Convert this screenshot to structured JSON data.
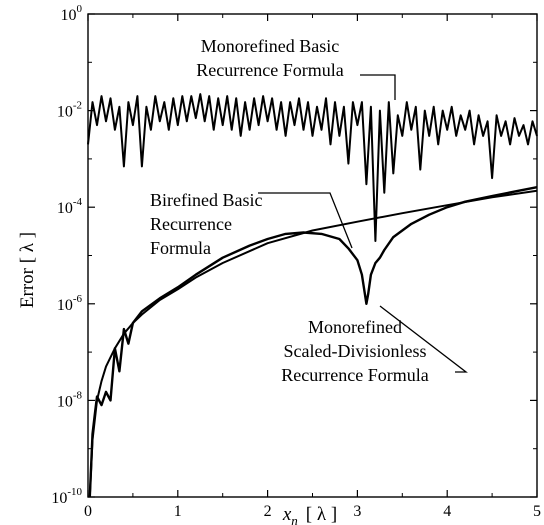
{
  "chart_data": {
    "type": "line",
    "title": "",
    "xlabel_var": "x",
    "xlabel_sub": "n",
    "xlabel_unit": "[ λ ]",
    "ylabel": "Error  [ λ ]",
    "xlim": [
      0,
      5
    ],
    "ylim": [
      1e-10,
      1
    ],
    "y_scale": "log",
    "grid": false,
    "legend": "none",
    "x_ticks": [
      0,
      1,
      2,
      3,
      4,
      5
    ],
    "x_tick_labels": [
      "0",
      "1",
      "2",
      "3",
      "4",
      "5"
    ],
    "y_ticks": [
      {
        "base": "10",
        "exp": "-10",
        "value": 1e-10
      },
      {
        "base": "10",
        "exp": "-8",
        "value": 1e-08
      },
      {
        "base": "10",
        "exp": "-6",
        "value": 1e-06
      },
      {
        "base": "10",
        "exp": "-4",
        "value": 0.0001
      },
      {
        "base": "10",
        "exp": "-2",
        "value": 0.01
      },
      {
        "base": "10",
        "exp": "0",
        "value": 1
      }
    ],
    "series": [
      {
        "label_lines": [
          "Monorefined Basic",
          "Recurrence Formula"
        ],
        "description_key": "oscillating",
        "x": [
          0.0,
          0.05,
          0.1,
          0.15,
          0.2,
          0.25,
          0.3,
          0.35,
          0.4,
          0.45,
          0.5,
          0.55,
          0.6,
          0.65,
          0.7,
          0.75,
          0.8,
          0.85,
          0.9,
          0.95,
          1.0,
          1.05,
          1.1,
          1.15,
          1.2,
          1.25,
          1.3,
          1.35,
          1.4,
          1.45,
          1.5,
          1.55,
          1.6,
          1.65,
          1.7,
          1.75,
          1.8,
          1.85,
          1.9,
          1.95,
          2.0,
          2.05,
          2.1,
          2.15,
          2.2,
          2.25,
          2.3,
          2.35,
          2.4,
          2.45,
          2.5,
          2.55,
          2.6,
          2.65,
          2.7,
          2.75,
          2.8,
          2.85,
          2.9,
          2.95,
          3.0,
          3.05,
          3.1,
          3.15,
          3.2,
          3.25,
          3.3,
          3.35,
          3.4,
          3.45,
          3.5,
          3.55,
          3.6,
          3.65,
          3.7,
          3.75,
          3.8,
          3.85,
          3.9,
          3.95,
          4.0,
          4.05,
          4.1,
          4.15,
          4.2,
          4.25,
          4.3,
          4.35,
          4.4,
          4.45,
          4.5,
          4.55,
          4.6,
          4.65,
          4.7,
          4.75,
          4.8,
          4.85,
          4.9,
          4.95,
          5.0
        ],
        "y": [
          0.002,
          0.015,
          0.005,
          0.02,
          0.006,
          0.018,
          0.004,
          0.012,
          0.0007,
          0.015,
          0.005,
          0.02,
          0.0007,
          0.012,
          0.004,
          0.02,
          0.006,
          0.015,
          0.004,
          0.018,
          0.005,
          0.02,
          0.006,
          0.02,
          0.007,
          0.022,
          0.006,
          0.02,
          0.004,
          0.018,
          0.005,
          0.02,
          0.004,
          0.018,
          0.003,
          0.015,
          0.004,
          0.018,
          0.005,
          0.02,
          0.006,
          0.018,
          0.004,
          0.015,
          0.003,
          0.015,
          0.005,
          0.018,
          0.004,
          0.015,
          0.003,
          0.012,
          0.004,
          0.018,
          0.002,
          0.015,
          0.003,
          0.012,
          0.0008,
          0.015,
          0.005,
          0.015,
          0.0003,
          0.012,
          2e-05,
          0.01,
          0.0002,
          0.015,
          0.0005,
          0.008,
          0.003,
          0.015,
          0.004,
          0.012,
          0.0006,
          0.01,
          0.003,
          0.012,
          0.002,
          0.01,
          0.004,
          0.012,
          0.003,
          0.008,
          0.004,
          0.01,
          0.002,
          0.008,
          0.003,
          0.006,
          0.0004,
          0.008,
          0.003,
          0.006,
          0.002,
          0.007,
          0.003,
          0.005,
          0.002,
          0.006,
          0.003
        ]
      },
      {
        "label_lines": [
          "Birefined Basic",
          "Recurrence",
          "Formula"
        ],
        "description_key": "smooth",
        "x": [
          0.02,
          0.05,
          0.1,
          0.15,
          0.2,
          0.3,
          0.4,
          0.5,
          0.6,
          0.8,
          1.0,
          1.2,
          1.5,
          2.0,
          2.5,
          3.0,
          3.5,
          4.0,
          4.5,
          5.0
        ],
        "y": [
          1e-10,
          1.5e-09,
          1e-08,
          2.5e-08,
          5e-08,
          1.2e-07,
          2.4e-07,
          4e-07,
          6e-07,
          1.2e-06,
          2e-06,
          3.5e-06,
          7e-06,
          1.8e-05,
          3.3e-05,
          5e-05,
          7.5e-05,
          0.00011,
          0.00016,
          0.00022
        ]
      },
      {
        "label_lines": [
          "Monorefined",
          "Scaled-Divisionless",
          "Recurrence Formula"
        ],
        "description_key": "dip",
        "x": [
          0.02,
          0.05,
          0.08,
          0.1,
          0.15,
          0.2,
          0.25,
          0.3,
          0.35,
          0.4,
          0.45,
          0.5,
          0.6,
          0.8,
          1.0,
          1.2,
          1.5,
          1.8,
          2.0,
          2.2,
          2.4,
          2.6,
          2.8,
          2.9,
          3.0,
          3.05,
          3.1,
          3.12,
          3.15,
          3.2,
          3.25,
          3.3,
          3.4,
          3.6,
          3.8,
          4.0,
          4.2,
          4.5,
          4.8,
          5.0
        ],
        "y": [
          1e-10,
          2e-09,
          6e-09,
          1.2e-08,
          8e-09,
          1.5e-08,
          1e-08,
          1.2e-07,
          4e-08,
          3e-07,
          1.5e-07,
          4e-07,
          7e-07,
          1.3e-06,
          2.2e-06,
          4e-06,
          9e-06,
          1.6e-05,
          2.2e-05,
          2.8e-05,
          3e-05,
          2.8e-05,
          2.2e-05,
          1.4e-05,
          8e-06,
          4e-06,
          1e-06,
          1.6e-06,
          4e-06,
          7e-06,
          9e-06,
          1.3e-05,
          2.4e-05,
          4.5e-05,
          7e-05,
          0.0001,
          0.00013,
          0.00017,
          0.00022,
          0.00026
        ]
      }
    ]
  }
}
